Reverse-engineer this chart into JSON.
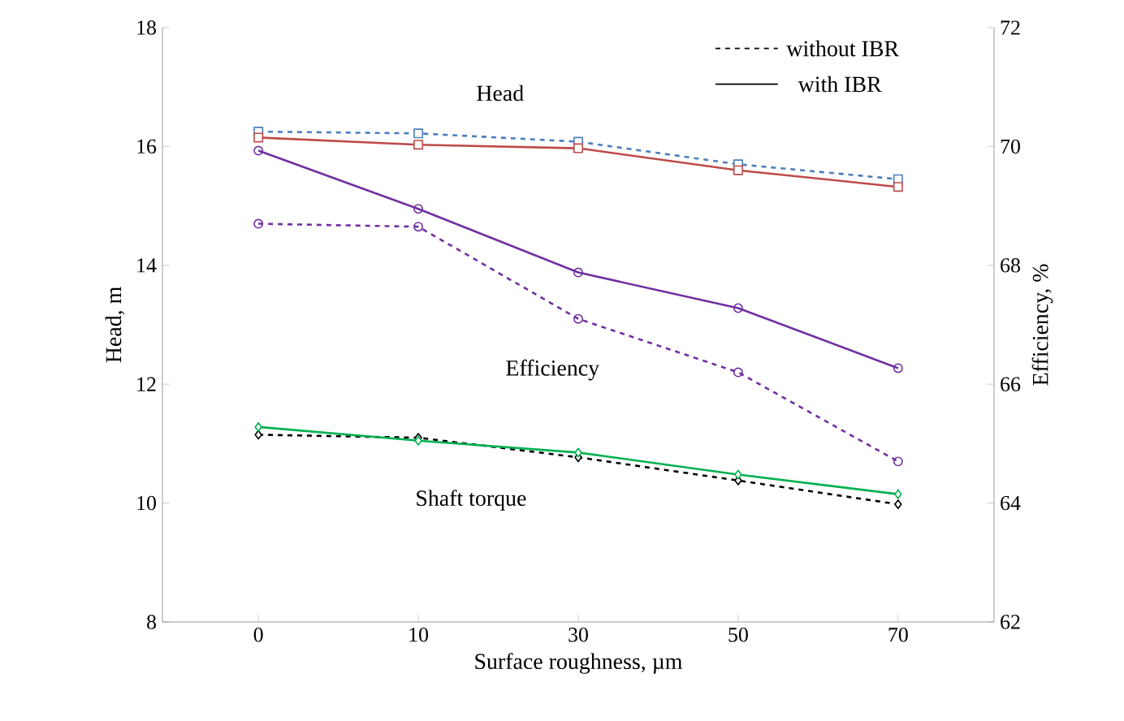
{
  "chart_data": {
    "type": "line",
    "xlabel": "Surface roughness, µm",
    "ylabel": "Head, m",
    "y2label": "Efficiency, %",
    "categories": [
      "0",
      "10",
      "30",
      "50",
      "70"
    ],
    "ylim": [
      8,
      18
    ],
    "yticks": [
      8,
      10,
      12,
      14,
      16,
      18
    ],
    "y2lim": [
      62,
      72
    ],
    "y2ticks": [
      62,
      64,
      66,
      68,
      70,
      72
    ],
    "series": [
      {
        "color": "#4a7ebb",
        "values": [
          16.25,
          16.22,
          16.08,
          15.7,
          15.45
        ],
        "line_style": "dashed",
        "marker": "square"
      },
      {
        "color": "#be4b48",
        "values": [
          16.15,
          16.03,
          15.97,
          15.6,
          15.32
        ],
        "line_style": "solid",
        "marker": "square"
      },
      {
        "color": "#7030a0",
        "values": [
          68.7,
          68.65,
          67.1,
          66.2,
          64.7
        ],
        "line_style": "dashed",
        "marker": "circle",
        "axis": "y2"
      },
      {
        "color": "#7030a0",
        "values": [
          69.93,
          68.95,
          67.88,
          67.28,
          66.27
        ],
        "line_style": "solid",
        "marker": "circle",
        "axis": "y2"
      },
      {
        "color": "#000000",
        "values": [
          11.15,
          11.1,
          10.77,
          10.38,
          9.98
        ],
        "line_style": "dashed",
        "marker": "diamond"
      },
      {
        "color": "#00b050",
        "values": [
          11.28,
          11.05,
          10.85,
          10.48,
          10.15
        ],
        "line_style": "solid",
        "marker": "diamond"
      }
    ],
    "annotations": [
      "Head",
      "Efficiency",
      "Shaft torque",
      "without IBR",
      "with IBR"
    ]
  }
}
